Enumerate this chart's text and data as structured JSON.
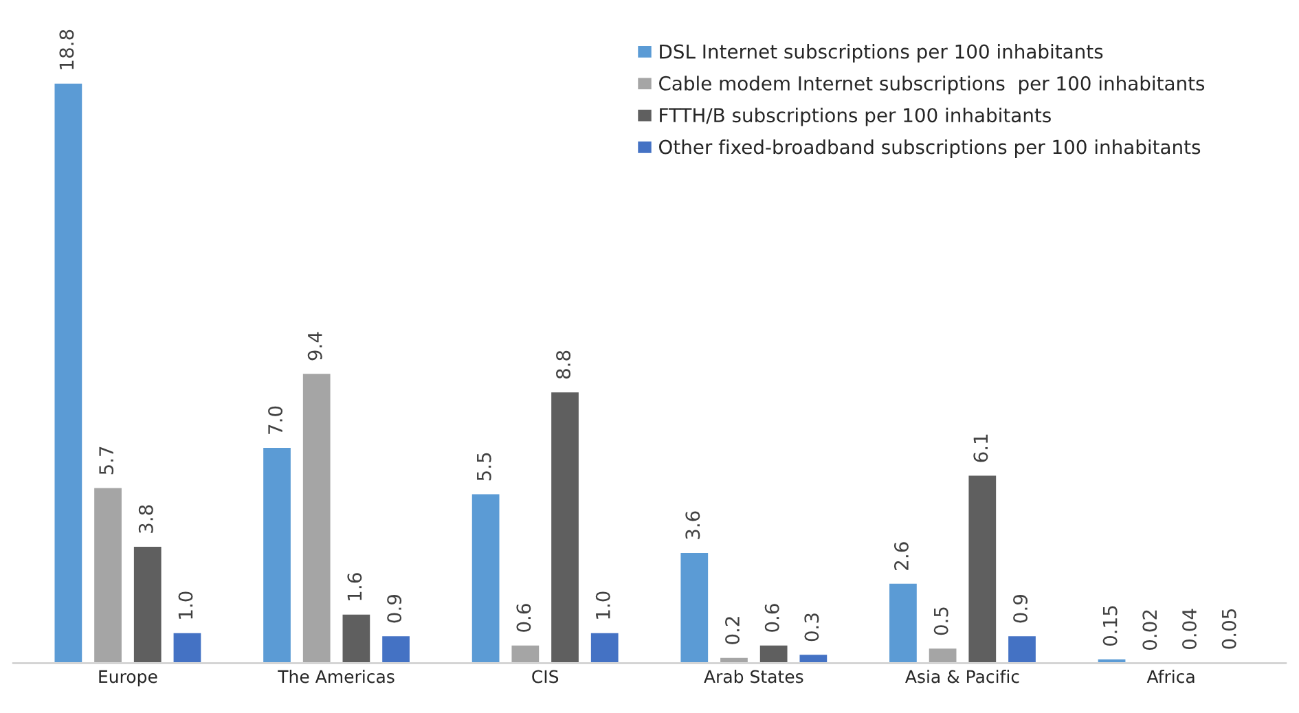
{
  "chart_data": {
    "type": "bar",
    "categories": [
      "Europe",
      "The Americas",
      "CIS",
      "Arab States",
      "Asia & Pacific",
      "Africa"
    ],
    "series": [
      {
        "name": "DSL Internet subscriptions per 100 inhabitants",
        "color": "#5b9bd5",
        "values": [
          18.8,
          7.0,
          5.5,
          3.6,
          2.6,
          0.15
        ],
        "value_labels": [
          "18.8",
          "7.0",
          "5.5",
          "3.6",
          "2.6",
          "0.15"
        ]
      },
      {
        "name": "Cable modem Internet subscriptions  per 100 inhabitants",
        "color": "#a5a5a5",
        "values": [
          5.7,
          9.4,
          0.6,
          0.2,
          0.5,
          0.02
        ],
        "value_labels": [
          "5.7",
          "9.4",
          "0.6",
          "0.2",
          "0.5",
          "0.02"
        ]
      },
      {
        "name": "FTTH/B subscriptions per 100 inhabitants",
        "color": "#5f5f5f",
        "values": [
          3.8,
          1.6,
          8.8,
          0.6,
          6.1,
          0.04
        ],
        "value_labels": [
          "3.8",
          "1.6",
          "8.8",
          "0.6",
          "6.1",
          "0.04"
        ]
      },
      {
        "name": "Other fixed-broadband subscriptions per 100 inhabitants",
        "color": "#4472c4",
        "values": [
          1.0,
          0.9,
          1.0,
          0.3,
          0.9,
          0.05
        ],
        "value_labels": [
          "1.0",
          "0.9",
          "1.0",
          "0.3",
          "0.9",
          "0.05"
        ]
      }
    ],
    "legend": "top right",
    "grid": false
  }
}
